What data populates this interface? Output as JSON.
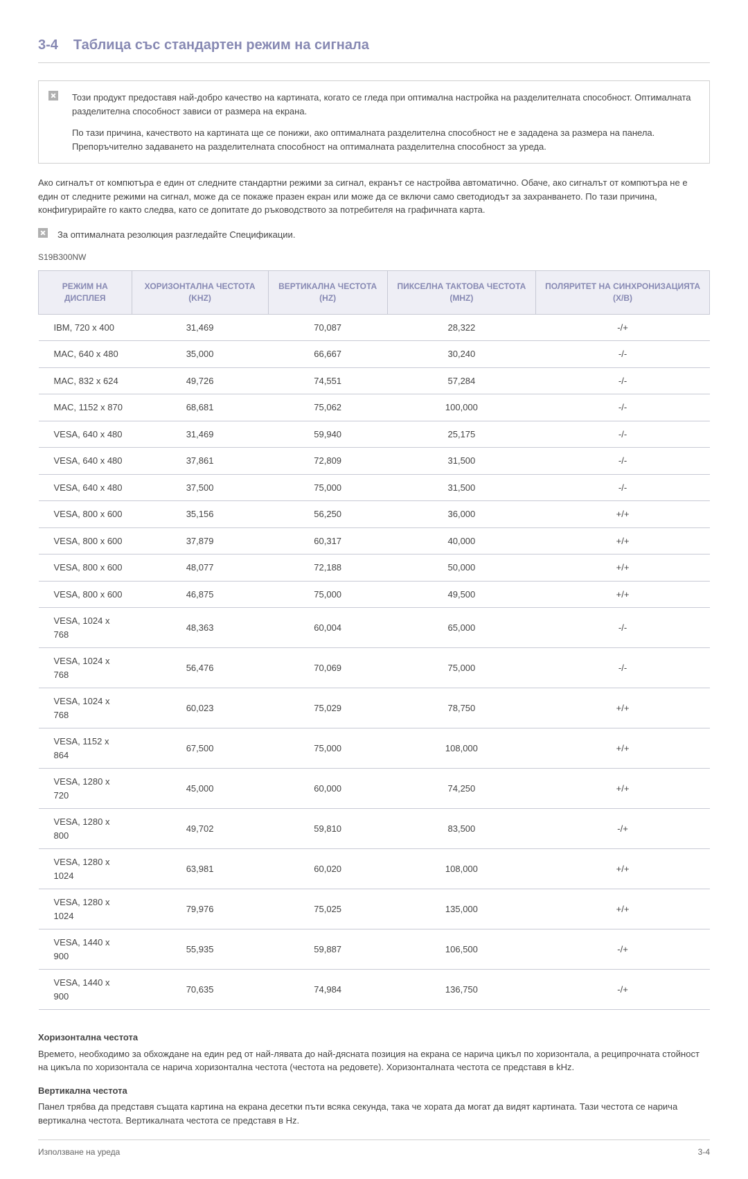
{
  "header": {
    "section_number": "3-4",
    "section_title": "Таблица със стандартен режим на сигнала"
  },
  "intro_box": {
    "para1": "Този продукт предоставя най-добро качество на картината, когато се гледа при оптимална настройка на разделителната способност. Оптималната разделителна способност зависи от размера на екрана.",
    "para2": "По тази причина, качеството на картината ще се понижи, ако оптималната разделителна способност не е зададена за размера на панела. Препоръчително задаването на разделителната способност на оптималната разделителна способност за уреда."
  },
  "body_para": "Ако сигналът от компютъра е един от следните стандартни режими за сигнал, екранът се настройва автоматично. Обаче, ако сигналът от компютъра не е един от следните режими на сигнал, може да се покаже празен екран или може да се включи само светодиодът за захранването. По тази причина, конфигурирайте го както следва, като се допитате до ръководството за потребителя на графичната карта.",
  "note_line": "За оптималната резолюция разгледайте Спецификации.",
  "model": "S19B300NW",
  "table": {
    "type": "table",
    "header_bg": "#eeeef5",
    "header_color": "#8789b3",
    "border_color": "#c7c9d4",
    "columns": [
      "РЕЖИМ НА ДИСПЛЕЯ",
      "ХОРИЗОНТАЛНА ЧЕСТОТА (KHZ)",
      "ВЕРТИКАЛНА ЧЕСТОТА (HZ)",
      "ПИКСЕЛНА ТАКТОВА ЧЕСТОТА (MHZ)",
      "ПОЛЯРИТЕТ НА СИНХРОНИЗАЦИЯТА (X/B)"
    ],
    "rows": [
      [
        "IBM, 720 x 400",
        "31,469",
        "70,087",
        "28,322",
        "-/+"
      ],
      [
        "MAC, 640 x 480",
        "35,000",
        "66,667",
        "30,240",
        "-/-"
      ],
      [
        "MAC, 832 x 624",
        "49,726",
        "74,551",
        "57,284",
        "-/-"
      ],
      [
        "MAC, 1152 x 870",
        "68,681",
        "75,062",
        "100,000",
        "-/-"
      ],
      [
        "VESA, 640 x 480",
        "31,469",
        "59,940",
        "25,175",
        "-/-"
      ],
      [
        "VESA, 640 x 480",
        "37,861",
        "72,809",
        "31,500",
        "-/-"
      ],
      [
        "VESA, 640 x 480",
        "37,500",
        "75,000",
        "31,500",
        "-/-"
      ],
      [
        "VESA, 800 x 600",
        "35,156",
        "56,250",
        "36,000",
        "+/+"
      ],
      [
        "VESA, 800 x 600",
        "37,879",
        "60,317",
        "40,000",
        "+/+"
      ],
      [
        "VESA, 800 x 600",
        "48,077",
        "72,188",
        "50,000",
        "+/+"
      ],
      [
        "VESA, 800 x 600",
        "46,875",
        "75,000",
        "49,500",
        "+/+"
      ],
      [
        "VESA, 1024 x 768",
        "48,363",
        "60,004",
        "65,000",
        "-/-"
      ],
      [
        "VESA, 1024 x 768",
        "56,476",
        "70,069",
        "75,000",
        "-/-"
      ],
      [
        "VESA, 1024 x 768",
        "60,023",
        "75,029",
        "78,750",
        "+/+"
      ],
      [
        "VESA, 1152 x 864",
        "67,500",
        "75,000",
        "108,000",
        "+/+"
      ],
      [
        "VESA, 1280 x 720",
        "45,000",
        "60,000",
        "74,250",
        "+/+"
      ],
      [
        "VESA, 1280 x 800",
        "49,702",
        "59,810",
        "83,500",
        "-/+"
      ],
      [
        "VESA, 1280 x 1024",
        "63,981",
        "60,020",
        "108,000",
        "+/+"
      ],
      [
        "VESA, 1280 x 1024",
        "79,976",
        "75,025",
        "135,000",
        "+/+"
      ],
      [
        "VESA, 1440 x 900",
        "55,935",
        "59,887",
        "106,500",
        "-/+"
      ],
      [
        "VESA, 1440 x 900",
        "70,635",
        "74,984",
        "136,750",
        "-/+"
      ]
    ]
  },
  "defs": {
    "h1": "Хоризонтална честота",
    "t1": "Времето, необходимо за обхождане на един ред от най-лявата до най-дясната позиция на екрана се нарича цикъл по хоризонтала, а реципрочната стойност на цикъла по хоризонтала се нарича хоризонтална честота (честота на редовете). Хоризонталната честота се представя в kHz.",
    "h2": "Вертикална честота",
    "t2": "Панел трябва да представя същата картина на екрана десетки пъти всяка секунда, така че хората да могат да видят картината. Тази честота се нарича вертикална честота. Вертикалната честота се представя в Hz."
  },
  "footer": {
    "left": "Използване на уреда",
    "right": "3-4"
  }
}
